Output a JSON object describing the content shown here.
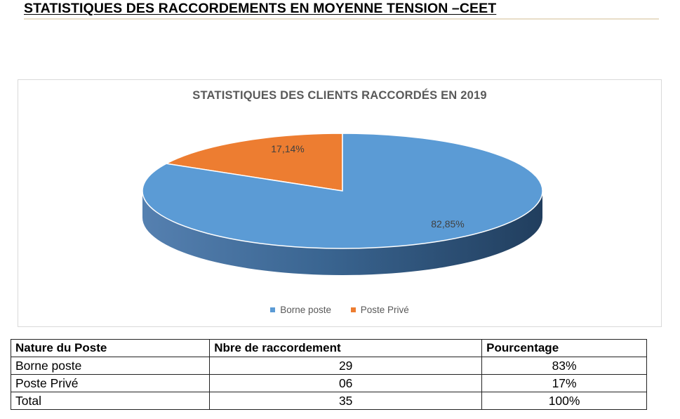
{
  "page_title": "STATISTIQUES DES RACCORDEMENTS EN MOYENNE TENSION –CEET",
  "colors": {
    "borne_poste": "#5b9bd5",
    "poste_prive": "#ed7d31",
    "text_gray": "#595959"
  },
  "chart_data": {
    "type": "pie",
    "title": "STATISTIQUES DES CLIENTS RACCORDÉS EN 2019",
    "style": "3d",
    "series": [
      {
        "name": "Borne poste",
        "value": 82.85,
        "label": "82,85%",
        "color": "#5b9bd5"
      },
      {
        "name": "Poste Privé",
        "value": 17.14,
        "label": "17,14%",
        "color": "#ed7d31"
      }
    ],
    "legend_position": "bottom"
  },
  "table": {
    "headers": [
      "Nature du Poste",
      "Nbre de raccordement",
      "Pourcentage"
    ],
    "rows": [
      [
        "Borne poste",
        "29",
        "83%"
      ],
      [
        "Poste Privé",
        "06",
        "17%"
      ],
      [
        "Total",
        "35",
        "100%"
      ]
    ]
  }
}
